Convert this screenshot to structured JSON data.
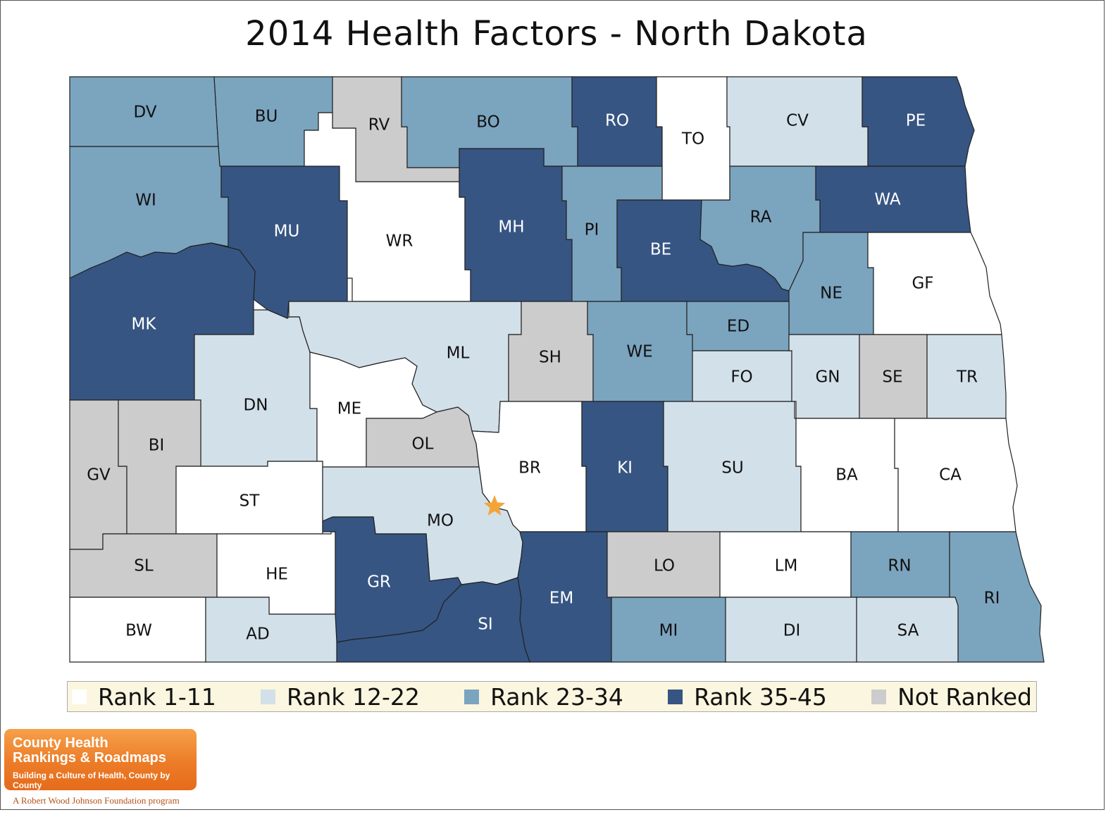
{
  "title": "2014 Health Factors - North Dakota",
  "colors": {
    "rank_1_11": "#ffffff",
    "rank_12_22": "#d2e0e9",
    "rank_23_34": "#7ba4bf",
    "rank_35_45": "#365583",
    "not_ranked": "#cccccc",
    "capital_star": "#f4a53a"
  },
  "legend": [
    {
      "label": "Rank 1-11",
      "color": "#ffffff"
    },
    {
      "label": "Rank 12-22",
      "color": "#d2e0e9"
    },
    {
      "label": "Rank 23-34",
      "color": "#7ba4bf"
    },
    {
      "label": "Rank 35-45",
      "color": "#365583"
    },
    {
      "label": "Not Ranked",
      "color": "#cccccc"
    }
  ],
  "counties": [
    {
      "code": "DV",
      "category": "Rank 23-34"
    },
    {
      "code": "BU",
      "category": "Rank 23-34"
    },
    {
      "code": "RV",
      "category": "Not Ranked"
    },
    {
      "code": "BO",
      "category": "Rank 23-34"
    },
    {
      "code": "RO",
      "category": "Rank 35-45"
    },
    {
      "code": "TO",
      "category": "Rank 1-11"
    },
    {
      "code": "CV",
      "category": "Rank 12-22"
    },
    {
      "code": "PE",
      "category": "Rank 35-45"
    },
    {
      "code": "WI",
      "category": "Rank 23-34"
    },
    {
      "code": "MU",
      "category": "Rank 35-45"
    },
    {
      "code": "WR",
      "category": "Rank 1-11"
    },
    {
      "code": "MH",
      "category": "Rank 35-45"
    },
    {
      "code": "PI",
      "category": "Rank 23-34"
    },
    {
      "code": "BE",
      "category": "Rank 35-45"
    },
    {
      "code": "RA",
      "category": "Rank 23-34"
    },
    {
      "code": "WA",
      "category": "Rank 35-45"
    },
    {
      "code": "MK",
      "category": "Rank 35-45"
    },
    {
      "code": "NE",
      "category": "Rank 23-34"
    },
    {
      "code": "GF",
      "category": "Rank 1-11"
    },
    {
      "code": "ML",
      "category": "Rank 12-22"
    },
    {
      "code": "SH",
      "category": "Not Ranked"
    },
    {
      "code": "WE",
      "category": "Rank 23-34"
    },
    {
      "code": "ED",
      "category": "Rank 23-34"
    },
    {
      "code": "DN",
      "category": "Rank 12-22"
    },
    {
      "code": "ME",
      "category": "Rank 1-11"
    },
    {
      "code": "FO",
      "category": "Rank 12-22"
    },
    {
      "code": "GN",
      "category": "Rank 12-22"
    },
    {
      "code": "SE",
      "category": "Not Ranked"
    },
    {
      "code": "TR",
      "category": "Rank 12-22"
    },
    {
      "code": "OL",
      "category": "Not Ranked"
    },
    {
      "code": "BI",
      "category": "Not Ranked"
    },
    {
      "code": "GV",
      "category": "Not Ranked"
    },
    {
      "code": "BR",
      "category": "Rank 1-11"
    },
    {
      "code": "KI",
      "category": "Rank 35-45"
    },
    {
      "code": "SU",
      "category": "Rank 12-22"
    },
    {
      "code": "BA",
      "category": "Rank 1-11"
    },
    {
      "code": "CA",
      "category": "Rank 1-11"
    },
    {
      "code": "ST",
      "category": "Rank 1-11"
    },
    {
      "code": "MO",
      "category": "Rank 12-22"
    },
    {
      "code": "SL",
      "category": "Not Ranked"
    },
    {
      "code": "HE",
      "category": "Rank 1-11"
    },
    {
      "code": "GR",
      "category": "Rank 35-45"
    },
    {
      "code": "EM",
      "category": "Rank 35-45"
    },
    {
      "code": "LO",
      "category": "Not Ranked"
    },
    {
      "code": "LM",
      "category": "Rank 1-11"
    },
    {
      "code": "RN",
      "category": "Rank 23-34"
    },
    {
      "code": "RI",
      "category": "Rank 23-34"
    },
    {
      "code": "SI",
      "category": "Rank 35-45"
    },
    {
      "code": "BW",
      "category": "Rank 1-11"
    },
    {
      "code": "AD",
      "category": "Rank 12-22"
    },
    {
      "code": "MI",
      "category": "Rank 23-34"
    },
    {
      "code": "DI",
      "category": "Rank 12-22"
    },
    {
      "code": "SA",
      "category": "Rank 12-22"
    }
  ],
  "logo": {
    "line1": "County Health",
    "line2": "Rankings & Roadmaps",
    "tagline": "Building a Culture of Health, County by County",
    "program": "A Robert Wood Johnson Foundation program"
  }
}
